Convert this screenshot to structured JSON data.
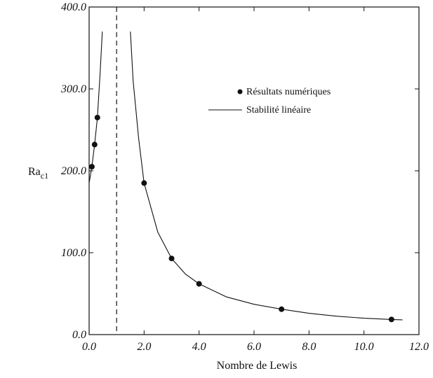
{
  "chart_data": {
    "type": "line",
    "xlabel": "Nombre de Lewis",
    "ylabel_main": "Ra",
    "ylabel_sub": "c1",
    "xlim": [
      0,
      12
    ],
    "ylim": [
      0,
      400
    ],
    "x_ticks": [
      0,
      2,
      4,
      6,
      8,
      10,
      12
    ],
    "x_tick_labels": [
      "0.0",
      "2.0",
      "4.0",
      "6.0",
      "8.0",
      "10.0",
      "12.0"
    ],
    "y_ticks": [
      0,
      100,
      200,
      300,
      400
    ],
    "y_tick_labels": [
      "0.0",
      "100.0",
      "200.0",
      "300.0",
      "400.0"
    ],
    "vertical_dashed_line_x": 1.0,
    "legend": {
      "placement": "upper-right",
      "markers_label": "Résultats numériques",
      "line_label": "Stabilité linéaire"
    },
    "series": [
      {
        "kind": "line",
        "segments": [
          [
            [
              0.0,
              185
            ],
            [
              0.1,
              205
            ],
            [
              0.2,
              232
            ],
            [
              0.3,
              265
            ],
            [
              0.4,
              320
            ],
            [
              0.48,
              370
            ]
          ],
          [
            [
              1.5,
              370
            ],
            [
              1.6,
              310
            ],
            [
              1.8,
              240
            ],
            [
              2.0,
              185
            ],
            [
              2.5,
              125
            ],
            [
              3.0,
              93
            ],
            [
              3.5,
              74
            ],
            [
              4.0,
              62
            ],
            [
              5.0,
              46
            ],
            [
              6.0,
              37
            ],
            [
              7.0,
              31
            ],
            [
              8.0,
              26
            ],
            [
              9.0,
              22.5
            ],
            [
              10.0,
              20
            ],
            [
              11.0,
              18.5
            ],
            [
              11.4,
              18
            ]
          ]
        ]
      },
      {
        "kind": "scatter",
        "x": [
          0.1,
          0.2,
          0.3,
          2.0,
          3.0,
          4.0,
          7.0,
          11.0
        ],
        "y": [
          205,
          232,
          265,
          185,
          93,
          62,
          31,
          18.5
        ]
      }
    ]
  }
}
